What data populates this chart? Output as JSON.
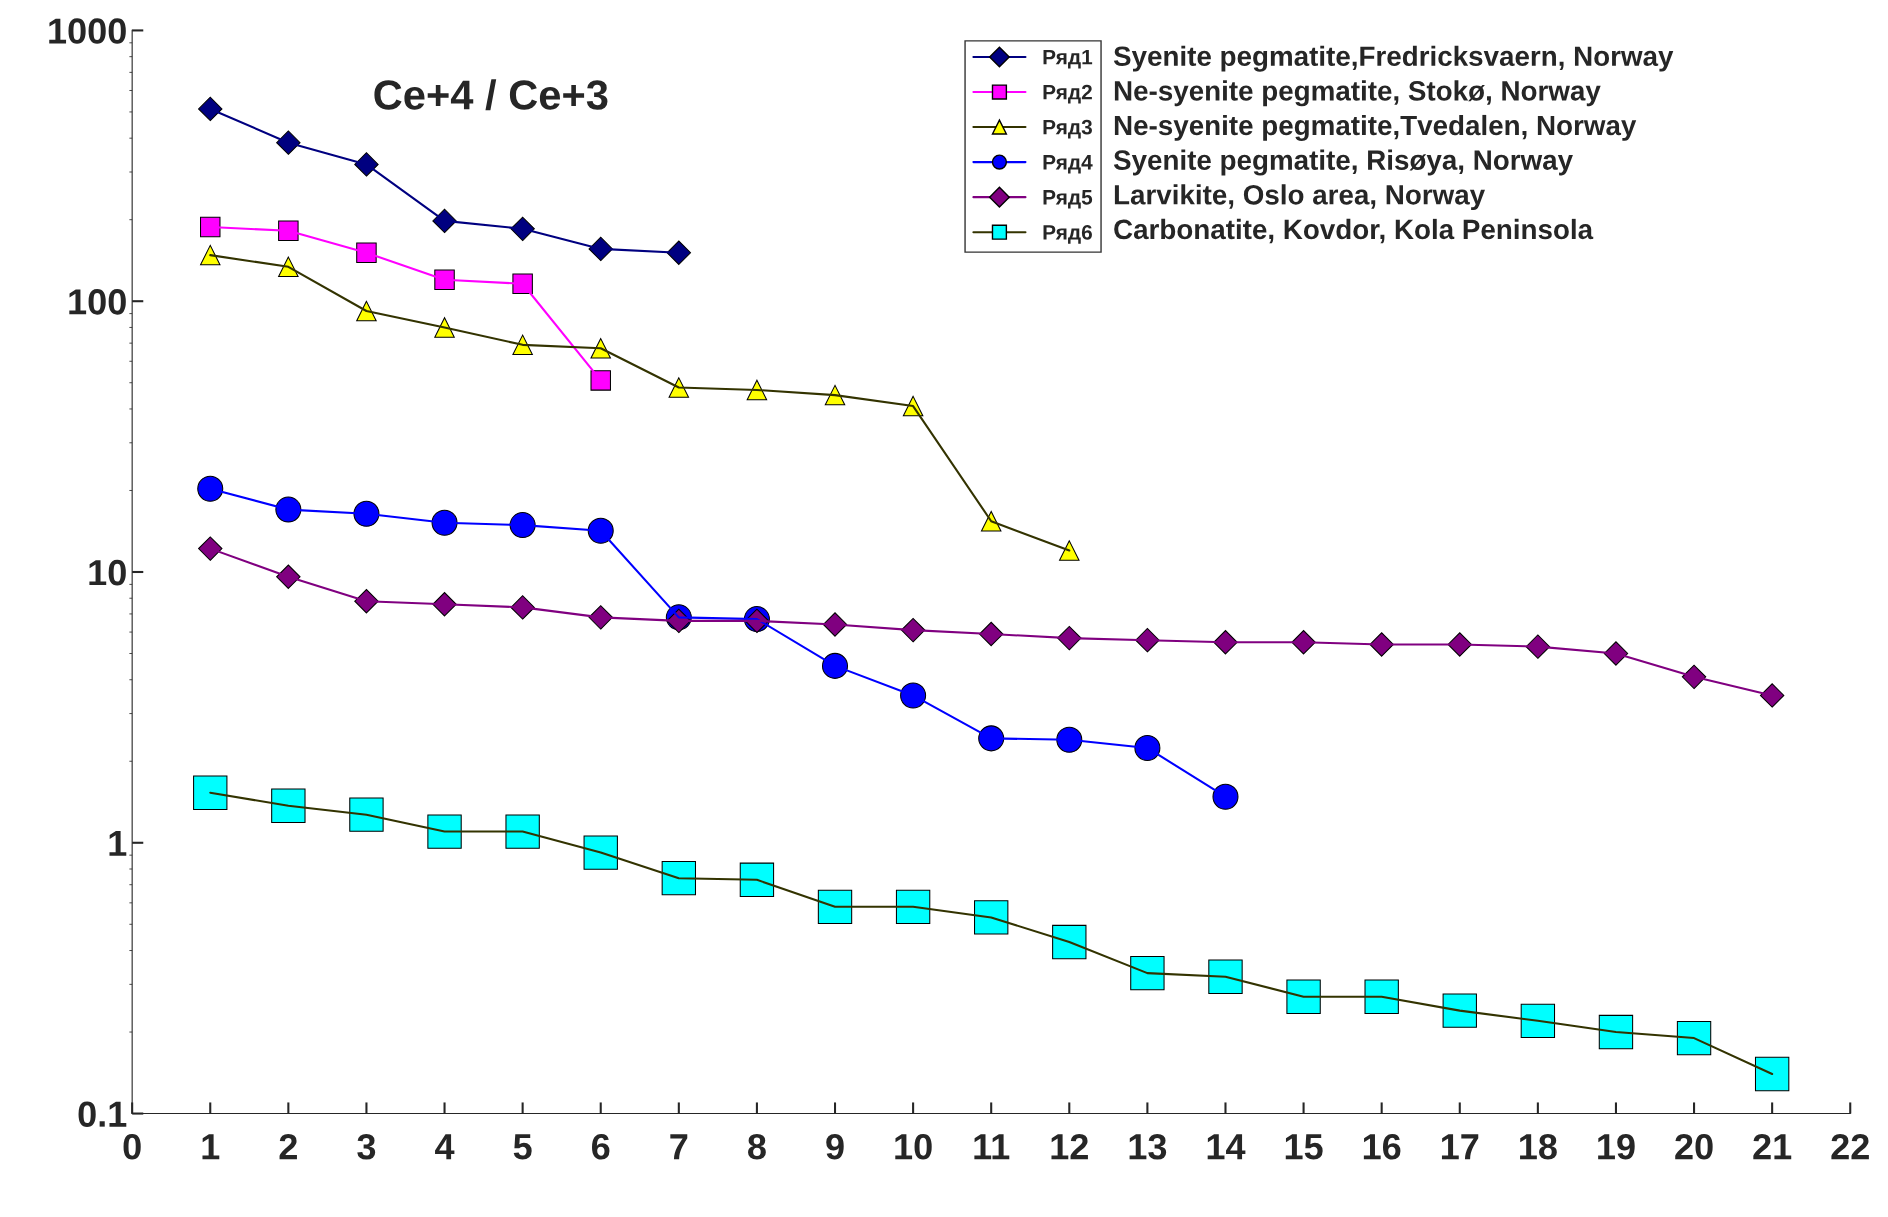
{
  "chart_data": {
    "type": "line",
    "title": "Ce+4 / Ce+3",
    "x": [
      1,
      2,
      3,
      4,
      5,
      6,
      7,
      8,
      9,
      10,
      11,
      12,
      13,
      14,
      15,
      16,
      17,
      18,
      19,
      20,
      21
    ],
    "series": [
      {
        "name": "Ряд1",
        "color": "#000080",
        "marker": "diamond",
        "values": [
          513,
          385,
          320,
          198,
          185,
          156,
          151,
          null,
          null,
          null,
          null,
          null,
          null,
          null,
          null,
          null,
          null,
          null,
          null,
          null,
          null
        ]
      },
      {
        "name": "Ряд2",
        "color": "#ff00ff",
        "marker": "square",
        "values": [
          188,
          182,
          151,
          120,
          116,
          51,
          null,
          null,
          null,
          null,
          null,
          null,
          null,
          null,
          null,
          null,
          null,
          null,
          null,
          null,
          null
        ]
      },
      {
        "name": "Ряд3",
        "color": "#ffff00",
        "marker": "triangle",
        "values": [
          148,
          134,
          92,
          80,
          69,
          67,
          48,
          47,
          45,
          41,
          15.4,
          12,
          null,
          null,
          null,
          null,
          null,
          null,
          null,
          null,
          null
        ]
      },
      {
        "name": "Ряд4",
        "color": "#0000ff",
        "marker": "circle",
        "values": [
          20.3,
          17,
          16.4,
          15.2,
          14.9,
          14.2,
          6.8,
          6.7,
          4.5,
          3.5,
          2.43,
          2.4,
          2.24,
          1.48,
          null,
          null,
          null,
          null,
          null,
          null,
          null
        ]
      },
      {
        "name": "Ряд5",
        "color": "#800080",
        "marker": "diamond",
        "values": [
          12.2,
          9.6,
          7.8,
          7.6,
          7.4,
          6.8,
          6.6,
          6.6,
          6.4,
          6.1,
          5.9,
          5.7,
          5.6,
          5.5,
          5.5,
          5.4,
          5.4,
          5.3,
          5.0,
          4.1,
          3.5
        ]
      },
      {
        "name": "Ряд6",
        "color": "#00ffff",
        "marker": "square",
        "values": [
          1.53,
          1.37,
          1.27,
          1.1,
          1.1,
          0.92,
          0.74,
          0.73,
          0.58,
          0.58,
          0.53,
          0.43,
          0.33,
          0.32,
          0.27,
          0.27,
          0.24,
          0.22,
          0.2,
          0.19,
          0.14
        ]
      }
    ],
    "annotations": [
      "Syenite pegmatite,Fredricksvaern, Norway",
      "Ne-syenite pegmatite, Stokø, Norway",
      "Ne-syenite pegmatite,Tvedalen, Norway",
      "Syenite pegmatite, Risøya, Norway",
      "Larvikite, Oslo area, Norway",
      "Carbonatite, Kovdor, Kola Peninsola"
    ],
    "log": "y",
    "xlim": [
      0,
      22
    ],
    "xticks": [
      0,
      1,
      2,
      3,
      4,
      5,
      6,
      7,
      8,
      9,
      10,
      11,
      12,
      13,
      14,
      15,
      16,
      17,
      18,
      19,
      20,
      21,
      22
    ],
    "ylim": [
      0.1,
      1000
    ],
    "yticks": [
      0.1,
      1,
      10,
      100,
      1000
    ],
    "legend": "top right",
    "grid": false
  }
}
